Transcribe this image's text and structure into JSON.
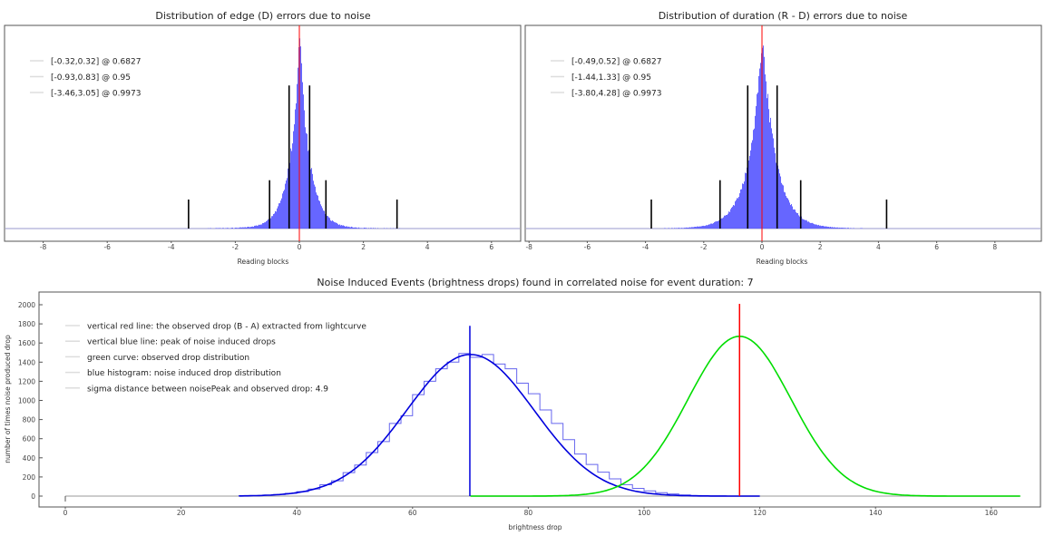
{
  "colors": {
    "hist": "#5555ff",
    "red": "#ff0000",
    "blue": "#0000dd",
    "green": "#00dd00",
    "black": "#000000",
    "frame": "#555555"
  },
  "chart_data": [
    {
      "type": "bar",
      "title": "Distribution of edge (D) errors due to noise",
      "xlabel": "Reading blocks",
      "ylabel": "",
      "xlim": [
        -8.4,
        7.7
      ],
      "xticks": [
        "-8",
        "-6",
        "-4",
        "-2",
        "0",
        "2",
        "4",
        "6"
      ],
      "xtick_values": [
        -8,
        -6,
        -4,
        -2,
        0,
        2,
        4,
        6
      ],
      "histogram_model": {
        "center": 0,
        "laplace_scale": 0.28,
        "range": [
          -8.4,
          7.7
        ]
      },
      "observed_line_x": 0,
      "legend": [
        "[-0.32,0.32] @ 0.6827",
        "[-0.93,0.83] @ 0.95",
        "[-3.46,3.05] @ 0.9973"
      ],
      "legend_position": "top-left",
      "intervals": [
        {
          "lo": -0.32,
          "hi": 0.32,
          "level": 0.6827,
          "marker_height": 0.74
        },
        {
          "lo": -0.93,
          "hi": 0.83,
          "level": 0.95,
          "marker_height": 0.25
        },
        {
          "lo": -3.46,
          "hi": 3.05,
          "level": 0.9973,
          "marker_height": 0.15
        }
      ]
    },
    {
      "type": "bar",
      "title": "Distribution of duration (R - D) errors due to noise",
      "xlabel": "Reading blocks",
      "ylabel": "",
      "xlim": [
        -8.2,
        9.5
      ],
      "xticks": [
        "-8",
        "-6",
        "-4",
        "-2",
        "0",
        "2",
        "4",
        "6",
        "8"
      ],
      "xtick_values": [
        -8,
        -6,
        -4,
        -2,
        0,
        2,
        4,
        6,
        8
      ],
      "histogram_model": {
        "center": 0,
        "laplace_scale": 0.42,
        "range": [
          -8.2,
          9.5
        ]
      },
      "observed_line_x": 0,
      "legend": [
        "[-0.49,0.52] @ 0.6827",
        "[-1.44,1.33] @ 0.95",
        "[-3.80,4.28] @ 0.9973"
      ],
      "legend_position": "top-left",
      "intervals": [
        {
          "lo": -0.49,
          "hi": 0.52,
          "level": 0.6827,
          "marker_height": 0.74
        },
        {
          "lo": -1.44,
          "hi": 1.33,
          "level": 0.95,
          "marker_height": 0.25
        },
        {
          "lo": -3.8,
          "hi": 4.28,
          "level": 0.9973,
          "marker_height": 0.15
        }
      ]
    },
    {
      "type": "line",
      "title": "Noise Induced Events (brightness drops) found in correlated noise for event duration: 7",
      "xlabel": "brightness drop",
      "ylabel": "number of times noise produced drop",
      "xlim": [
        -4.5,
        168
      ],
      "ylim": [
        -120,
        2230
      ],
      "xticks": [
        "0",
        "20",
        "40",
        "60",
        "80",
        "100",
        "120",
        "140",
        "160"
      ],
      "xtick_values": [
        0,
        20,
        40,
        60,
        80,
        100,
        120,
        140,
        160
      ],
      "yticks": [
        "0",
        "200",
        "400",
        "600",
        "800",
        "1000",
        "1200",
        "1400",
        "1600",
        "1800",
        "2000"
      ],
      "ytick_values": [
        0,
        200,
        400,
        600,
        800,
        1000,
        1200,
        1400,
        1600,
        1800,
        2000
      ],
      "legend": [
        "vertical red line: the observed drop (B - A) extracted from lightcurve",
        "vertical blue line: peak of noise induced drops",
        "green curve: observed drop distribution",
        "blue histogram: noise induced drop distribution",
        "sigma distance between noisePeak and observed drop: 4.9"
      ],
      "legend_position": "top-left",
      "noise_peak_x": 69.9,
      "noise_peak_line_top": 1780,
      "observed_drop_x": 116.5,
      "observed_line_top": 2010,
      "noise_curve": {
        "mean": 70,
        "peak": 1480,
        "sigma": 11
      },
      "observed_curve": {
        "mean": 116.5,
        "peak": 1670,
        "sigma": 8.9,
        "range": [
          70,
          165
        ]
      },
      "histogram": {
        "bin_start": 30,
        "bin_width": 2,
        "values": [
          3,
          5,
          9,
          16,
          28,
          46,
          73,
          118,
          160,
          245,
          325,
          455,
          570,
          760,
          840,
          1060,
          1200,
          1330,
          1400,
          1490,
          1450,
          1480,
          1380,
          1330,
          1180,
          1070,
          900,
          760,
          590,
          440,
          330,
          250,
          180,
          120,
          80,
          55,
          35,
          22,
          12,
          6
        ]
      }
    }
  ]
}
